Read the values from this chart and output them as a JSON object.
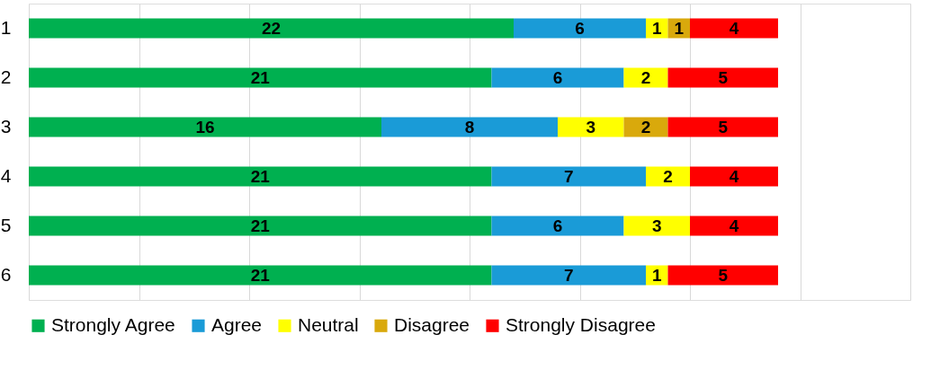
{
  "chart_data": {
    "type": "bar",
    "orientation": "horizontal",
    "stacked": true,
    "data_labels": true,
    "grid": "x",
    "legend": "bottom",
    "tick_labels": "y",
    "categories": [
      "1",
      "2",
      "3",
      "4",
      "5",
      "6"
    ],
    "xlim": [
      0,
      40
    ],
    "xticks": [
      {
        "value": 0,
        "label": null
      },
      {
        "value": 5,
        "label": null
      },
      {
        "value": 10,
        "label": null
      },
      {
        "value": 15,
        "label": null
      },
      {
        "value": 20,
        "label": null
      },
      {
        "value": 25,
        "label": null
      },
      {
        "value": 30,
        "label": null
      },
      {
        "value": 35,
        "label": null
      },
      {
        "value": 40,
        "label": null
      }
    ],
    "series": [
      {
        "name": "Strongly Agree",
        "color": "#00b050",
        "values": [
          22,
          21,
          16,
          21,
          21,
          21
        ]
      },
      {
        "name": "Agree",
        "color": "#1a9bd7",
        "values": [
          6,
          6,
          8,
          7,
          6,
          7
        ]
      },
      {
        "name": "Neutral",
        "color": "#ffff00",
        "values": [
          1,
          2,
          3,
          2,
          3,
          1
        ]
      },
      {
        "name": "Disagree",
        "color": "#d9a90c",
        "values": [
          1,
          null,
          2,
          null,
          null,
          null
        ]
      },
      {
        "name": "Strongly Disagree",
        "color": "#ff0000",
        "values": [
          4,
          5,
          5,
          4,
          4,
          5
        ]
      }
    ]
  }
}
